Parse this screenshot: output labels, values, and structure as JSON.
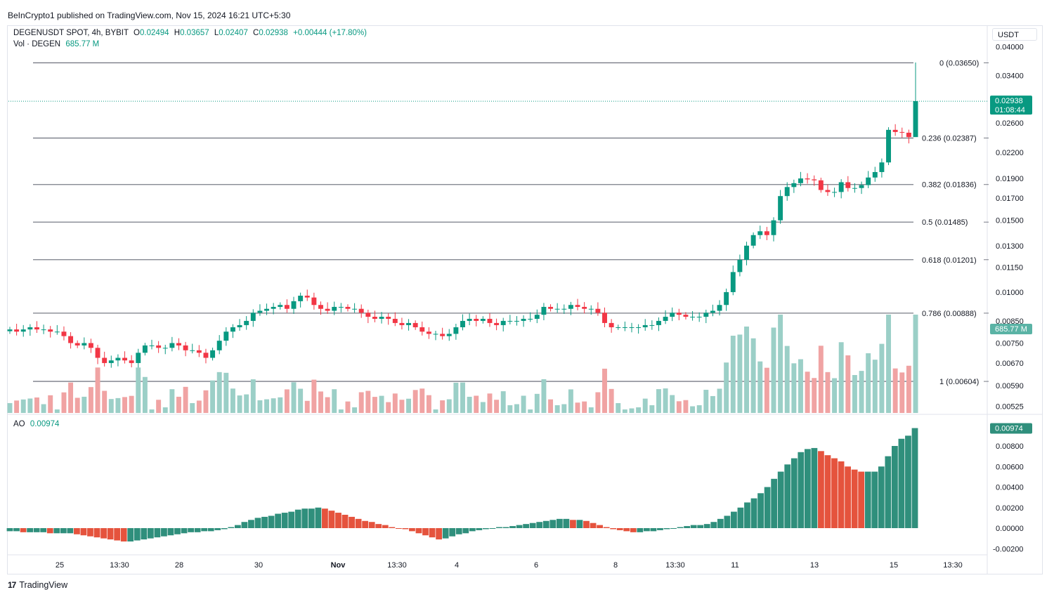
{
  "header": {
    "published": "BeInCrypto1 published on TradingView.com, Nov 15, 2024 16:21 UTC+5:30"
  },
  "legend": {
    "symbol": "DEGENUSDT SPOT, 4h, BYBIT",
    "open_label": "O",
    "open": "0.02494",
    "high_label": "H",
    "high": "0.03657",
    "low_label": "L",
    "low": "0.02407",
    "close_label": "C",
    "close": "0.02938",
    "change": "+0.00444 (+17.80%)",
    "vol_label": "Vol · DEGEN",
    "vol_value": "685.77 M",
    "ao_label": "AO",
    "ao_value": "0.00974"
  },
  "currency_button": "USDT",
  "price_tag": {
    "value": "0.02938",
    "timer": "01:08:44"
  },
  "volume_tag": "685.77 M",
  "ao_tag": "0.00974",
  "footer": {
    "brand": "TradingView",
    "logo_mark": "17"
  },
  "colors": {
    "up": "#089981",
    "down": "#f23645",
    "up_vol": "#9bcfc7",
    "down_vol": "#f0a3a3",
    "ao_up": "#2f8f7c",
    "ao_down": "#e5533d",
    "fib": "#787b86"
  },
  "chart_data": {
    "type": "candlestick",
    "title": "DEGENUSDT SPOT, 4h, BYBIT",
    "price_axis_ticks": [
      "0.04000",
      "0.03400",
      "0.02600",
      "0.02200",
      "0.01900",
      "0.01700",
      "0.01500",
      "0.01300",
      "0.01150",
      "0.01000",
      "0.00850",
      "0.00750",
      "0.00670",
      "0.00590",
      "0.00525"
    ],
    "ao_axis_ticks": [
      "0.00800",
      "0.00600",
      "0.00400",
      "0.00200",
      "0.00000",
      "-0.00200"
    ],
    "x_labels": [
      "25",
      "13:30",
      "28",
      "30",
      "Nov",
      "13:30",
      "4",
      "6",
      "8",
      "13:30",
      "11",
      "13",
      "15",
      "13:30"
    ],
    "fib_levels": [
      {
        "label": "0 (0.03650)",
        "value": 0.0365
      },
      {
        "label": "0.236 (0.02387)",
        "value": 0.02387
      },
      {
        "label": "0.382 (0.01836)",
        "value": 0.01836
      },
      {
        "label": "0.5 (0.01485)",
        "value": 0.01485
      },
      {
        "label": "0.618 (0.01201)",
        "value": 0.01201
      },
      {
        "label": "0.786 (0.00888)",
        "value": 0.00888
      },
      {
        "label": "1 (0.00604)",
        "value": 0.00604
      }
    ],
    "close_series": [
      0.0081,
      0.008,
      0.0081,
      0.0082,
      0.0081,
      0.0081,
      0.008,
      0.008,
      0.0078,
      0.0075,
      0.0074,
      0.0075,
      0.0073,
      0.0069,
      0.0067,
      0.0068,
      0.0069,
      0.0068,
      0.0067,
      0.0071,
      0.0074,
      0.0074,
      0.0073,
      0.0073,
      0.0075,
      0.0074,
      0.0072,
      0.0072,
      0.0071,
      0.0069,
      0.0072,
      0.0076,
      0.008,
      0.0082,
      0.0083,
      0.0085,
      0.0089,
      0.009,
      0.0091,
      0.0092,
      0.0093,
      0.0091,
      0.0095,
      0.0098,
      0.0097,
      0.0093,
      0.0091,
      0.009,
      0.0092,
      0.0092,
      0.0091,
      0.0091,
      0.0089,
      0.0087,
      0.0086,
      0.0087,
      0.0086,
      0.0084,
      0.0083,
      0.0084,
      0.0082,
      0.008,
      0.0079,
      0.0079,
      0.0078,
      0.0079,
      0.0082,
      0.0085,
      0.0086,
      0.0085,
      0.0086,
      0.0084,
      0.0083,
      0.0085,
      0.0085,
      0.0085,
      0.0086,
      0.0086,
      0.0088,
      0.0092,
      0.0091,
      0.0091,
      0.0091,
      0.0093,
      0.0092,
      0.0091,
      0.0091,
      0.0089,
      0.0084,
      0.0082,
      0.0082,
      0.0082,
      0.0082,
      0.0082,
      0.0083,
      0.0083,
      0.0085,
      0.0087,
      0.0089,
      0.0088,
      0.0087,
      0.0087,
      0.0087,
      0.0089,
      0.009,
      0.0093,
      0.01,
      0.0112,
      0.012,
      0.013,
      0.0138,
      0.0141,
      0.0138,
      0.015,
      0.0172,
      0.0181,
      0.0185,
      0.019,
      0.0189,
      0.0188,
      0.0178,
      0.0176,
      0.0176,
      0.0186,
      0.018,
      0.018,
      0.0183,
      0.0191,
      0.0197,
      0.0208,
      0.025,
      0.0247,
      0.0246,
      0.024,
      0.0294
    ],
    "ao_series": [
      -0.0003,
      -0.0003,
      -0.0004,
      -0.0004,
      -0.0004,
      -0.0004,
      -0.0005,
      -0.0005,
      -0.0005,
      -0.0005,
      -0.0006,
      -0.0007,
      -0.0008,
      -0.0009,
      -0.001,
      -0.0011,
      -0.0012,
      -0.0013,
      -0.0013,
      -0.0012,
      -0.0011,
      -0.001,
      -0.0009,
      -0.0008,
      -0.0007,
      -0.0006,
      -0.0005,
      -0.0004,
      -0.0004,
      -0.0003,
      -0.0003,
      -0.0002,
      -0.0001,
      0.0001,
      0.0003,
      0.0006,
      0.0008,
      0.001,
      0.0011,
      0.0012,
      0.0014,
      0.0015,
      0.0016,
      0.0018,
      0.0019,
      0.0019,
      0.002,
      0.0019,
      0.0017,
      0.0015,
      0.0013,
      0.0011,
      0.0009,
      0.0007,
      0.0006,
      0.0004,
      0.0003,
      0.0001,
      0.0,
      -0.0001,
      -0.0003,
      -0.0005,
      -0.0007,
      -0.0009,
      -0.0011,
      -0.001,
      -0.0008,
      -0.0006,
      -0.0005,
      -0.0003,
      -0.0002,
      -0.0001,
      0.0,
      0.0001,
      0.0001,
      0.0002,
      0.0003,
      0.0004,
      0.0005,
      0.0006,
      0.0007,
      0.0008,
      0.0009,
      0.0009,
      0.0008,
      0.0008,
      0.0007,
      0.0005,
      0.0003,
      0.0001,
      -0.0001,
      -0.0002,
      -0.0003,
      -0.0004,
      -0.0004,
      -0.0003,
      -0.0003,
      -0.0002,
      -0.0001,
      0.0,
      0.0001,
      0.0002,
      0.0003,
      0.0003,
      0.0004,
      0.0006,
      0.0009,
      0.0012,
      0.0016,
      0.002,
      0.0025,
      0.0029,
      0.0034,
      0.004,
      0.0048,
      0.0055,
      0.0062,
      0.0068,
      0.0074,
      0.0077,
      0.0078,
      0.0075,
      0.0071,
      0.0068,
      0.0065,
      0.006,
      0.0057,
      0.0055,
      0.0055,
      0.0055,
      0.006,
      0.007,
      0.008,
      0.0087,
      0.009,
      0.00974
    ],
    "last_price": 0.02938,
    "last_volume": "685.77 M",
    "last_ao": 0.00974
  }
}
